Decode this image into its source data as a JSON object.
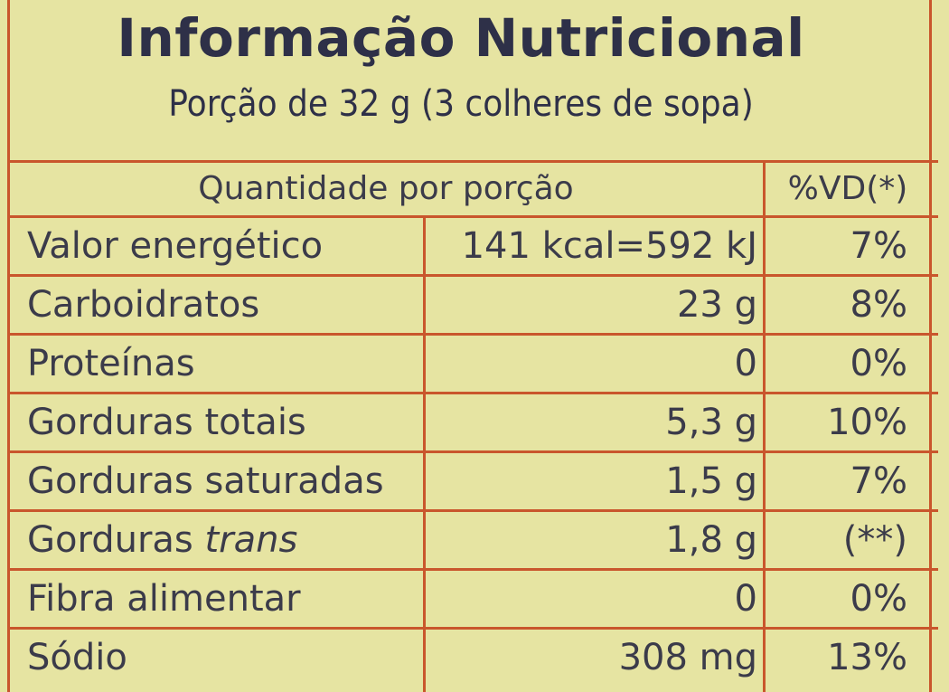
{
  "header": {
    "title": "Informação Nutricional",
    "subtitle": "Porção de 32 g (3 colheres de sopa)"
  },
  "table": {
    "columns": [
      "Quantidade por porção",
      "%VD(*)"
    ],
    "rows": [
      {
        "nutrient": "Valor energético",
        "amount": "141 kcal=592 kJ",
        "dv": "7%"
      },
      {
        "nutrient": "Carboidratos",
        "amount": "23 g",
        "dv": "8%"
      },
      {
        "nutrient": "Proteínas",
        "amount": "0",
        "dv": "0%"
      },
      {
        "nutrient": "Gorduras totais",
        "amount": "5,3 g",
        "dv": "10%"
      },
      {
        "nutrient": "Gorduras saturadas",
        "amount": "1,5 g",
        "dv": "7%"
      },
      {
        "nutrient": "Gorduras",
        "nutrient_italic": "trans",
        "amount": "1,8 g",
        "dv": "(**)"
      },
      {
        "nutrient": "Fibra alimentar",
        "amount": "0",
        "dv": "0%"
      },
      {
        "nutrient": "Sódio",
        "amount": "308 mg",
        "dv": "13%"
      }
    ]
  }
}
